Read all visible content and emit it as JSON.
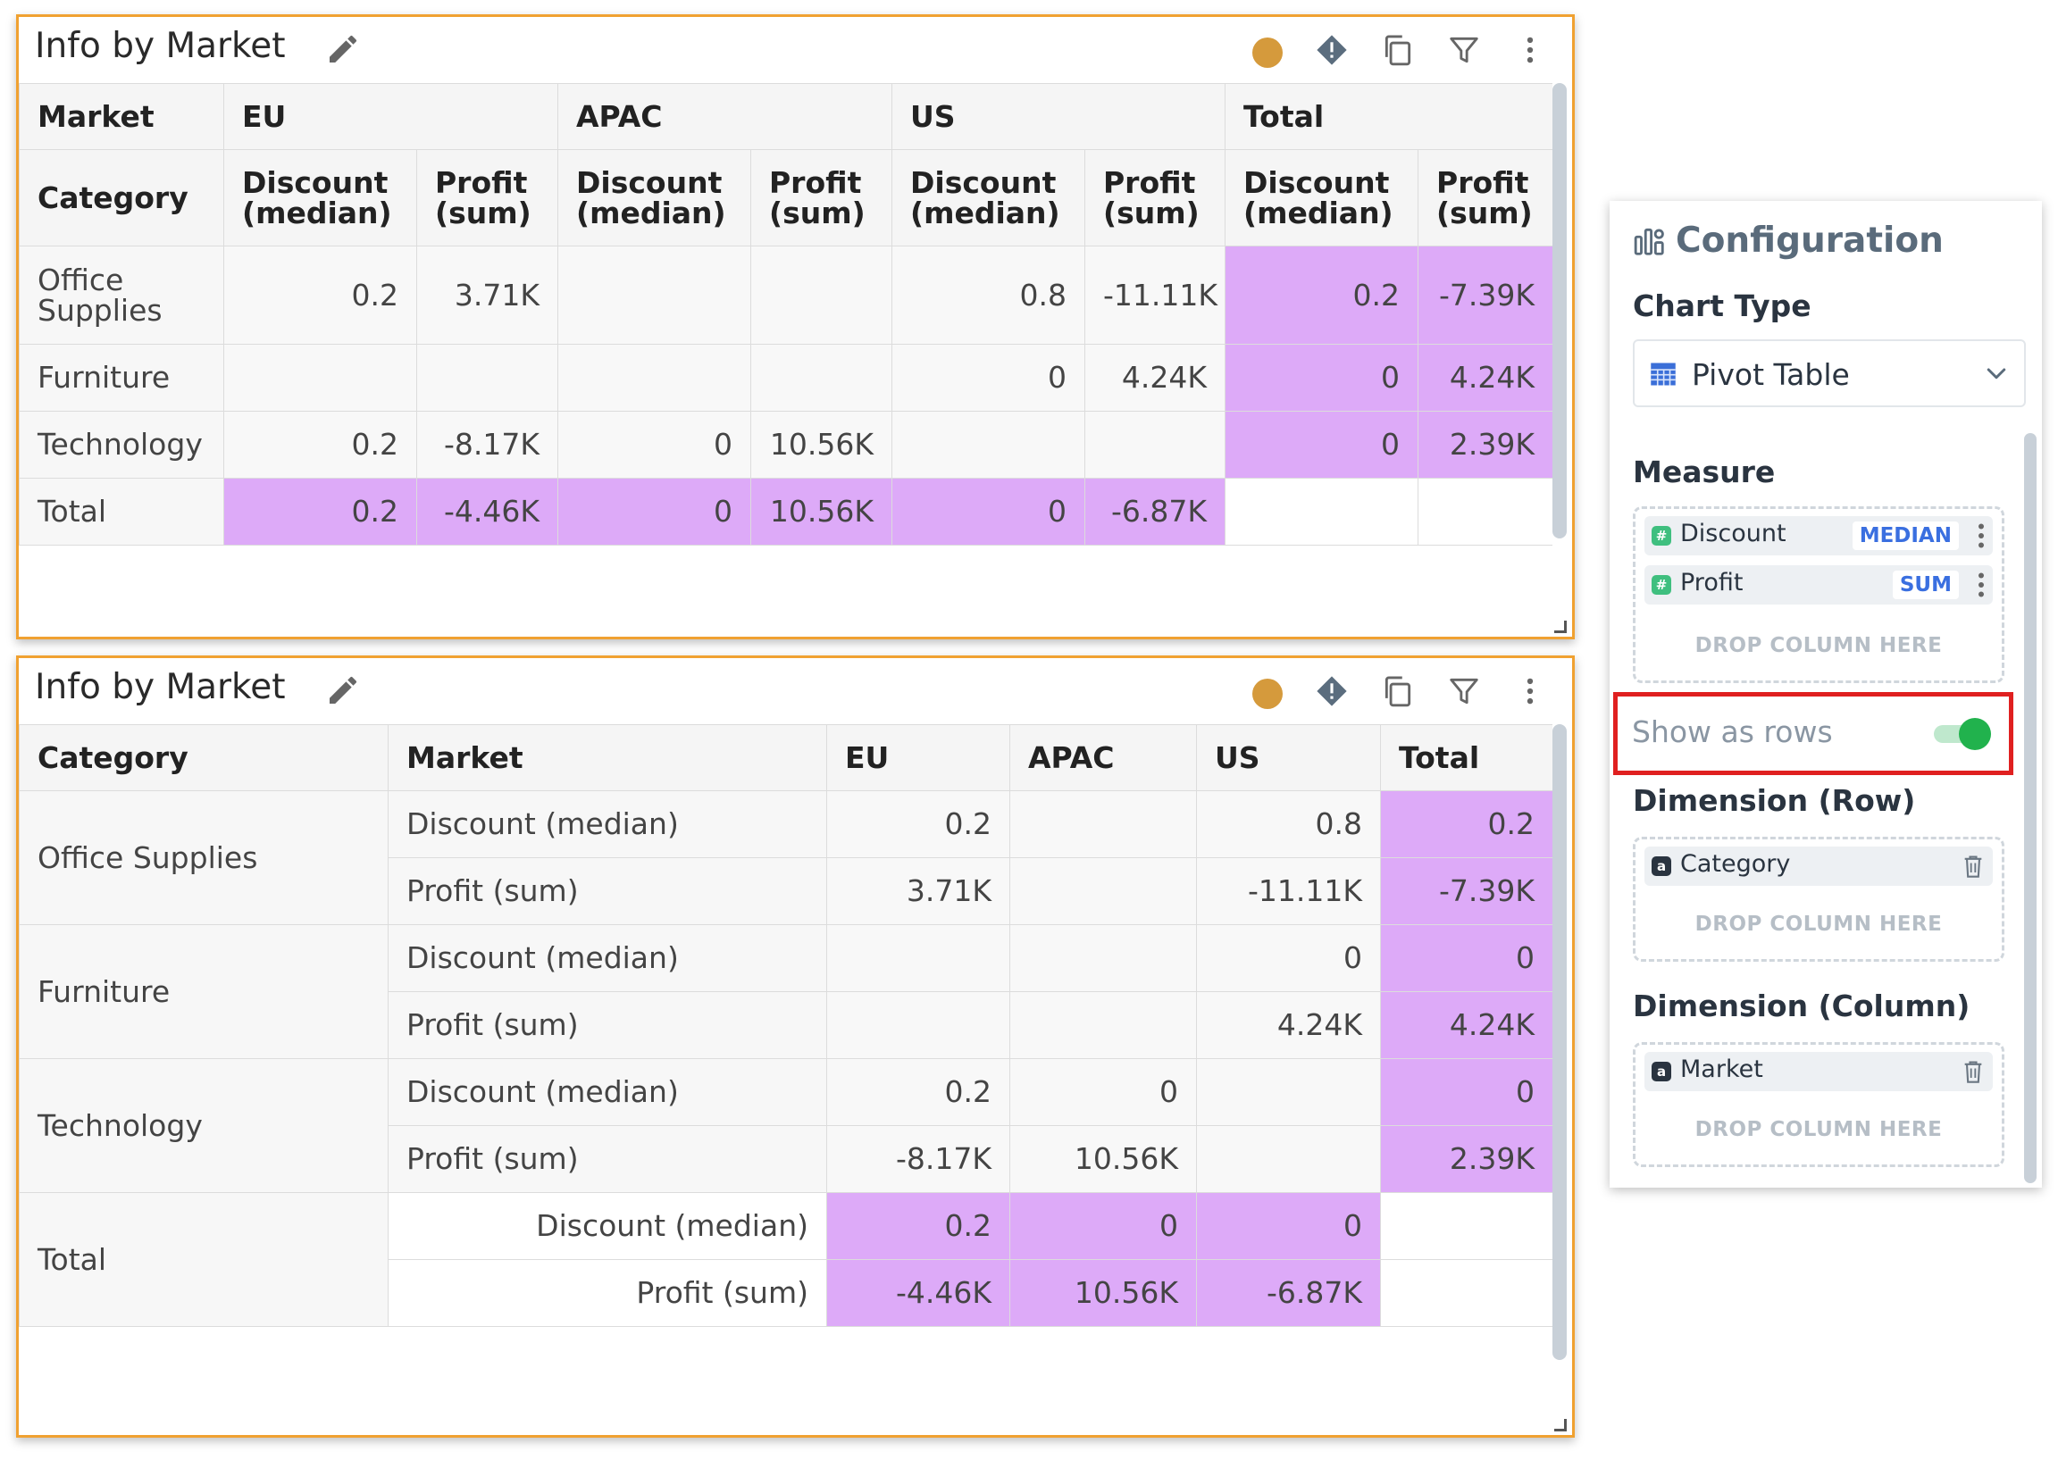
{
  "panel1": {
    "title": "Info by Market",
    "header_row1": [
      "Market",
      "EU",
      "APAC",
      "US",
      "Total"
    ],
    "header_row2_first": "Category",
    "measure_headers": [
      [
        "Discount",
        "(median)"
      ],
      [
        "Profit",
        "(sum)"
      ],
      [
        "Discount",
        "(median)"
      ],
      [
        "Profit",
        "(sum)"
      ],
      [
        "Discount",
        "(median)"
      ],
      [
        "Profit",
        "(sum)"
      ],
      [
        "Discount",
        "(median)"
      ],
      [
        "Profit",
        "(sum)"
      ]
    ],
    "rows": [
      {
        "label": [
          "Office",
          "Supplies"
        ],
        "values": [
          "0.2",
          "3.71K",
          "",
          "",
          "0.8",
          "-11.11K",
          "0.2",
          "-7.39K"
        ]
      },
      {
        "label": [
          "Furniture"
        ],
        "values": [
          "",
          "",
          "",
          "",
          "0",
          "4.24K",
          "0",
          "4.24K"
        ]
      },
      {
        "label": [
          "Technology"
        ],
        "values": [
          "0.2",
          "-8.17K",
          "0",
          "10.56K",
          "",
          "",
          "0",
          "2.39K"
        ]
      },
      {
        "label": [
          "Total"
        ],
        "values": [
          "0.2",
          "-4.46K",
          "0",
          "10.56K",
          "0",
          "-6.87K",
          "",
          ""
        ]
      }
    ]
  },
  "panel2": {
    "title": "Info by Market",
    "headers": [
      "Category",
      "Market",
      "EU",
      "APAC",
      "US",
      "Total"
    ],
    "groups": [
      {
        "category": "Office Supplies",
        "rows": [
          {
            "measure": "Discount (median)",
            "values": [
              "0.2",
              "",
              "0.8",
              "0.2"
            ]
          },
          {
            "measure": "Profit (sum)",
            "values": [
              "3.71K",
              "",
              "-11.11K",
              "-7.39K"
            ]
          }
        ]
      },
      {
        "category": "Furniture",
        "rows": [
          {
            "measure": "Discount (median)",
            "values": [
              "",
              "",
              "0",
              "0"
            ]
          },
          {
            "measure": "Profit (sum)",
            "values": [
              "",
              "",
              "4.24K",
              "4.24K"
            ]
          }
        ]
      },
      {
        "category": "Technology",
        "rows": [
          {
            "measure": "Discount (median)",
            "values": [
              "0.2",
              "0",
              "",
              "0"
            ]
          },
          {
            "measure": "Profit (sum)",
            "values": [
              "-8.17K",
              "10.56K",
              "",
              "2.39K"
            ]
          }
        ]
      },
      {
        "category": "Total",
        "rows": [
          {
            "measure": "Discount (median)",
            "values": [
              "0.2",
              "0",
              "0",
              ""
            ]
          },
          {
            "measure": "Profit (sum)",
            "values": [
              "-4.46K",
              "10.56K",
              "-6.87K",
              ""
            ]
          }
        ]
      }
    ]
  },
  "config": {
    "title": "Configuration",
    "chart_type_label": "Chart Type",
    "chart_type_value": "Pivot Table",
    "measure_label": "Measure",
    "measures": [
      {
        "name": "Discount",
        "agg": "MEDIAN"
      },
      {
        "name": "Profit",
        "agg": "SUM"
      }
    ],
    "drop_text": "DROP COLUMN HERE",
    "show_as_rows_label": "Show as rows",
    "dimension_row_label": "Dimension (Row)",
    "dimension_row_item": "Category",
    "dimension_col_label": "Dimension (Column)",
    "dimension_col_item": "Market"
  },
  "colors": {
    "highlight": "#ddaaf8",
    "panel_border": "#f0a131",
    "toggle_on": "#21b24d",
    "callout_border": "#e02020",
    "status_dot": "#d59a3c"
  }
}
